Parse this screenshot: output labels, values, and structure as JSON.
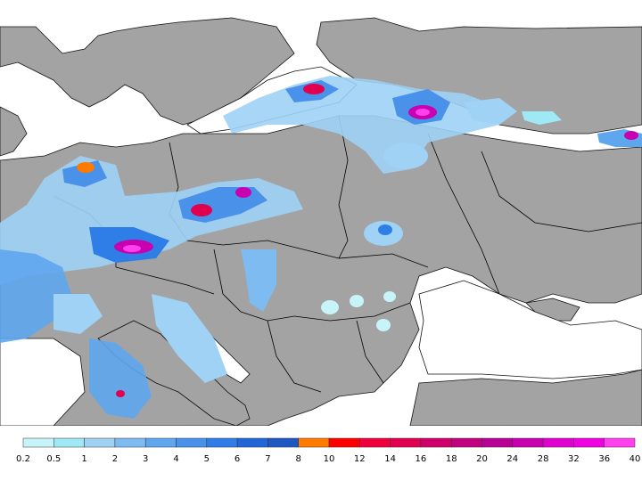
{
  "legend": {
    "ticks": [
      "0.2",
      "0.5",
      "1",
      "2",
      "3",
      "4",
      "5",
      "6",
      "7",
      "8",
      "10",
      "12",
      "14",
      "16",
      "18",
      "20",
      "24",
      "28",
      "32",
      "36",
      "40"
    ],
    "colors": [
      "#c7f4f8",
      "#9fe8f5",
      "#9fd2f5",
      "#7dbbf0",
      "#5ea6ee",
      "#4a91ea",
      "#2f7de6",
      "#2166d6",
      "#1f57c2",
      "#ff7a00",
      "#ff0000",
      "#f0003c",
      "#e0004f",
      "#d0006a",
      "#c0007f",
      "#b80096",
      "#c800b0",
      "#e000d0",
      "#f000e0",
      "#ff40ee"
    ]
  },
  "map": {
    "land_color": "#a3a3a3",
    "sea_color": "#ffffff",
    "border_color": "#000000"
  }
}
